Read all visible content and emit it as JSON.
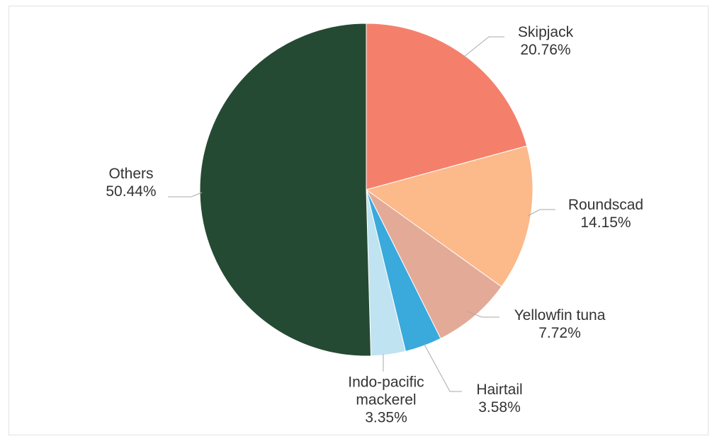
{
  "chart_data": {
    "type": "pie",
    "categories": [
      "Skipjack",
      "Roundscad",
      "Yellowfin tuna",
      "Hairtail",
      "Indo-pacific mackerel",
      "Others"
    ],
    "values": [
      20.76,
      14.15,
      7.72,
      3.58,
      3.35,
      50.44
    ],
    "value_labels": [
      "20.76%",
      "14.15%",
      "7.72%",
      "3.58%",
      "3.35%",
      "50.44%"
    ],
    "colors": [
      "#f4806c",
      "#fcb98a",
      "#e3aa98",
      "#3aa9dc",
      "#bfe3f0",
      "#254a33"
    ]
  }
}
